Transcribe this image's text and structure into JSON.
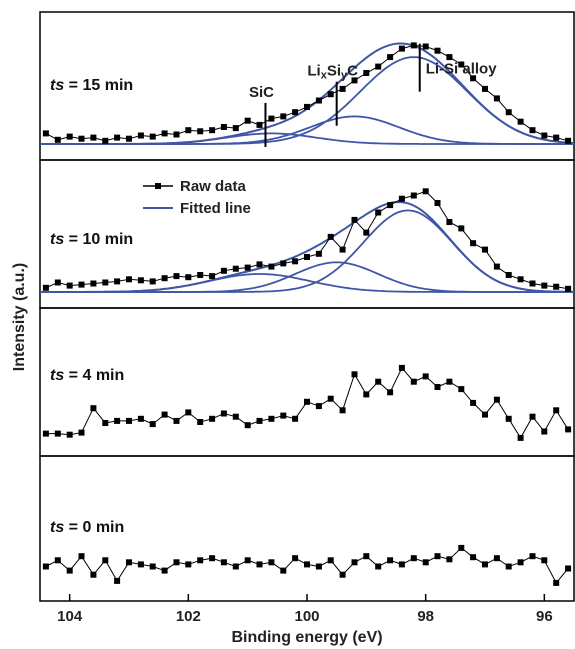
{
  "chart_data": {
    "type": "line",
    "xlabel": "Binding energy (eV)",
    "ylabel": "Intensity (a.u.)",
    "xlim": [
      104.5,
      95.5
    ],
    "x_reversed": true,
    "xticks": [
      104,
      102,
      100,
      98,
      96
    ],
    "grid": false,
    "colors": {
      "raw": "#000000",
      "fit": "#3f56a6"
    },
    "legend": {
      "location": "top-left of second panel",
      "entries": [
        {
          "name": "Raw data",
          "style": "black line with square markers"
        },
        {
          "name": "Fitted line",
          "style": "blue line"
        }
      ]
    },
    "panels": [
      {
        "label_prefix": "ts",
        "label_suffix": " = 15 min",
        "peaks": [
          {
            "label": "SiC",
            "center": 100.6,
            "amplitude": 0.1,
            "width": 0.75
          },
          {
            "label_parts": [
              "Li",
              "x",
              "Si",
              "y",
              "C"
            ],
            "center": 99.2,
            "amplitude": 0.26,
            "width": 0.75
          },
          {
            "label": "Li-Si alloy",
            "center": 98.2,
            "amplitude": 0.82,
            "width": 0.9
          }
        ],
        "annotations": [
          {
            "text": "SiC",
            "x": 100.7,
            "y": 0.18
          },
          {
            "text_parts": [
              "Li",
              "x",
              "Si",
              "y",
              "C"
            ],
            "x": 99.5,
            "y": 0.38
          },
          {
            "text": "Li-Si alloy",
            "x": 98.1,
            "y": 0.72
          }
        ],
        "raw": {
          "x": [
            104.4,
            104.2,
            104.0,
            103.8,
            103.6,
            103.4,
            103.2,
            103.0,
            102.8,
            102.6,
            102.4,
            102.2,
            102.0,
            101.8,
            101.6,
            101.4,
            101.2,
            101.0,
            100.8,
            100.6,
            100.4,
            100.2,
            100.0,
            99.8,
            99.6,
            99.4,
            99.2,
            99.0,
            98.8,
            98.6,
            98.4,
            98.2,
            98.0,
            97.8,
            97.6,
            97.4,
            97.2,
            97.0,
            96.8,
            96.6,
            96.4,
            96.2,
            96.0,
            95.8,
            95.6
          ],
          "y": [
            0.1,
            0.04,
            0.07,
            0.05,
            0.06,
            0.03,
            0.06,
            0.05,
            0.08,
            0.07,
            0.1,
            0.09,
            0.13,
            0.12,
            0.13,
            0.16,
            0.15,
            0.22,
            0.18,
            0.24,
            0.26,
            0.3,
            0.35,
            0.41,
            0.47,
            0.52,
            0.6,
            0.67,
            0.73,
            0.82,
            0.9,
            0.93,
            0.92,
            0.88,
            0.82,
            0.75,
            0.62,
            0.52,
            0.43,
            0.3,
            0.21,
            0.13,
            0.08,
            0.06,
            0.03
          ]
        }
      },
      {
        "label_prefix": "ts",
        "label_suffix": " = 10 min",
        "peaks": [
          {
            "label": "SiC",
            "center": 100.8,
            "amplitude": 0.17,
            "width": 0.85
          },
          {
            "label": "LixSiyC",
            "center": 99.5,
            "amplitude": 0.28,
            "width": 0.7
          },
          {
            "label": "Li-Si alloy",
            "center": 98.3,
            "amplitude": 0.77,
            "width": 0.75
          }
        ],
        "raw": {
          "x": [
            104.4,
            104.2,
            104.0,
            103.8,
            103.6,
            103.4,
            103.2,
            103.0,
            102.8,
            102.6,
            102.4,
            102.2,
            102.0,
            101.8,
            101.6,
            101.4,
            101.2,
            101.0,
            100.8,
            100.6,
            100.4,
            100.2,
            100.0,
            99.8,
            99.6,
            99.4,
            99.2,
            99.0,
            98.8,
            98.6,
            98.4,
            98.2,
            98.0,
            97.8,
            97.6,
            97.4,
            97.2,
            97.0,
            96.8,
            96.6,
            96.4,
            96.2,
            96.0,
            95.8,
            95.6
          ],
          "y": [
            0.04,
            0.09,
            0.06,
            0.07,
            0.08,
            0.09,
            0.1,
            0.12,
            0.11,
            0.1,
            0.13,
            0.15,
            0.14,
            0.16,
            0.15,
            0.2,
            0.22,
            0.23,
            0.26,
            0.24,
            0.27,
            0.29,
            0.33,
            0.36,
            0.52,
            0.4,
            0.68,
            0.56,
            0.75,
            0.82,
            0.88,
            0.91,
            0.95,
            0.84,
            0.66,
            0.6,
            0.46,
            0.4,
            0.24,
            0.16,
            0.12,
            0.08,
            0.06,
            0.05,
            0.03
          ]
        }
      },
      {
        "label_prefix": "ts",
        "label_suffix": " = 4 min",
        "raw": {
          "x": [
            104.4,
            104.2,
            104.0,
            103.8,
            103.6,
            103.4,
            103.2,
            103.0,
            102.8,
            102.6,
            102.4,
            102.2,
            102.0,
            101.8,
            101.6,
            101.4,
            101.2,
            101.0,
            100.8,
            100.6,
            100.4,
            100.2,
            100.0,
            99.8,
            99.6,
            99.4,
            99.2,
            99.0,
            98.8,
            98.6,
            98.4,
            98.2,
            98.0,
            97.8,
            97.6,
            97.4,
            97.2,
            97.0,
            96.8,
            96.6,
            96.4,
            96.2,
            96.0,
            95.8,
            95.6
          ],
          "y": [
            0.06,
            0.06,
            0.05,
            0.07,
            0.3,
            0.16,
            0.18,
            0.18,
            0.2,
            0.15,
            0.24,
            0.18,
            0.26,
            0.17,
            0.2,
            0.25,
            0.22,
            0.14,
            0.18,
            0.2,
            0.23,
            0.2,
            0.36,
            0.32,
            0.39,
            0.28,
            0.62,
            0.43,
            0.55,
            0.45,
            0.68,
            0.55,
            0.6,
            0.5,
            0.55,
            0.48,
            0.35,
            0.24,
            0.38,
            0.2,
            0.02,
            0.22,
            0.08,
            0.28,
            0.1
          ]
        }
      },
      {
        "label_prefix": "ts",
        "label_suffix": " = 0 min",
        "raw": {
          "x": [
            104.4,
            104.2,
            104.0,
            103.8,
            103.6,
            103.4,
            103.2,
            103.0,
            102.8,
            102.6,
            102.4,
            102.2,
            102.0,
            101.8,
            101.6,
            101.4,
            101.2,
            101.0,
            100.8,
            100.6,
            100.4,
            100.2,
            100.0,
            99.8,
            99.6,
            99.4,
            99.2,
            99.0,
            98.8,
            98.6,
            98.4,
            98.2,
            98.0,
            97.8,
            97.6,
            97.4,
            97.2,
            97.0,
            96.8,
            96.6,
            96.4,
            96.2,
            96.0,
            95.8,
            95.6
          ],
          "y": [
            0.18,
            0.24,
            0.14,
            0.28,
            0.1,
            0.24,
            0.04,
            0.22,
            0.2,
            0.18,
            0.14,
            0.22,
            0.2,
            0.24,
            0.26,
            0.22,
            0.18,
            0.24,
            0.2,
            0.22,
            0.14,
            0.26,
            0.2,
            0.18,
            0.24,
            0.1,
            0.22,
            0.28,
            0.18,
            0.24,
            0.2,
            0.26,
            0.22,
            0.28,
            0.25,
            0.36,
            0.27,
            0.2,
            0.26,
            0.18,
            0.22,
            0.28,
            0.24,
            0.02,
            0.16
          ]
        }
      }
    ]
  }
}
